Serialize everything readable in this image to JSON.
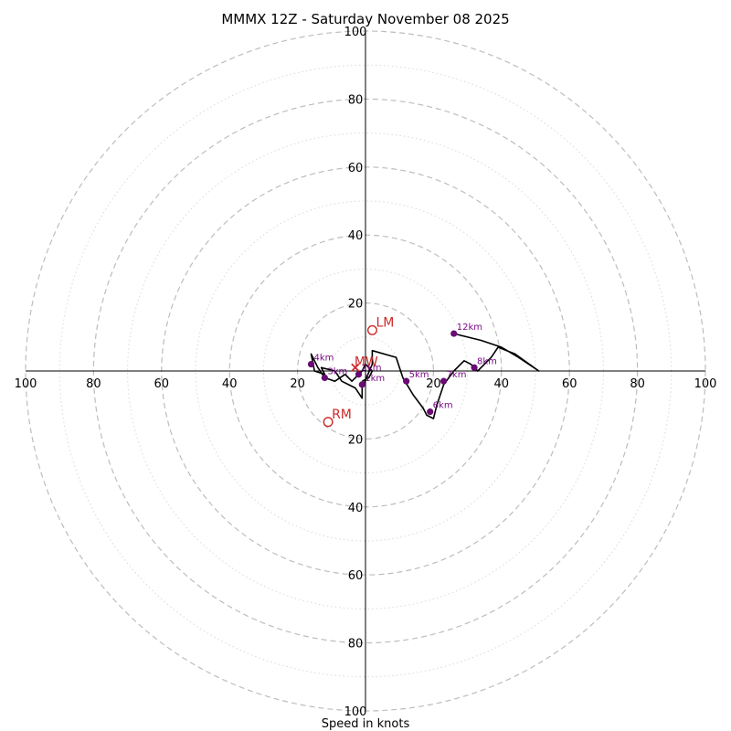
{
  "chart_data": {
    "type": "hodograph",
    "title": "MMMX 12Z - Saturday November 08 2025",
    "xlabel": "Speed in knots",
    "max_speed": 100,
    "ring_major_step": 20,
    "ring_minor_step": 10,
    "tick_values": [
      20,
      40,
      60,
      80,
      100
    ],
    "hodograph_path": [
      [
        -1,
        -3
      ],
      [
        1,
        -2
      ],
      [
        2,
        0
      ],
      [
        0,
        2
      ],
      [
        -1,
        0
      ],
      [
        -2,
        -1
      ],
      [
        -4,
        -3
      ],
      [
        -6,
        -1
      ],
      [
        -9,
        -3
      ],
      [
        -12,
        -2
      ],
      [
        -14,
        1
      ],
      [
        -16,
        5
      ],
      [
        -15,
        0
      ],
      [
        -12,
        -1
      ],
      [
        -13,
        1
      ],
      [
        -9,
        0
      ],
      [
        -7,
        -3
      ],
      [
        -5,
        -4
      ],
      [
        -3,
        -5
      ],
      [
        -1,
        -8
      ],
      [
        -1,
        -5
      ],
      [
        2,
        2
      ],
      [
        2,
        6
      ],
      [
        9,
        4
      ],
      [
        11,
        -2
      ],
      [
        14,
        -7
      ],
      [
        17,
        -11
      ],
      [
        18,
        -13
      ],
      [
        20,
        -14
      ],
      [
        21,
        -10
      ],
      [
        23,
        -4
      ],
      [
        26,
        0
      ],
      [
        29,
        3
      ],
      [
        31,
        2
      ],
      [
        33,
        0
      ],
      [
        37,
        4
      ],
      [
        39,
        7
      ],
      [
        44,
        5
      ],
      [
        51,
        0
      ],
      [
        45,
        4
      ],
      [
        40,
        7
      ],
      [
        34,
        9
      ],
      [
        26,
        11
      ]
    ],
    "height_markers": [
      {
        "label": "1km",
        "u": -1,
        "v": -4
      },
      {
        "label": "2km",
        "u": -2,
        "v": -1
      },
      {
        "label": "3km",
        "u": -12,
        "v": -2
      },
      {
        "label": "4km",
        "u": -16,
        "v": 2
      },
      {
        "label": "5km",
        "u": 12,
        "v": -3
      },
      {
        "label": "6km",
        "u": 19,
        "v": -12
      },
      {
        "label": "7km",
        "u": 23,
        "v": -3
      },
      {
        "label": "8km",
        "u": 32,
        "v": 1
      },
      {
        "label": "12km",
        "u": 26,
        "v": 11
      }
    ],
    "storm_motion": [
      {
        "label": "LM",
        "u": 2,
        "v": 12
      },
      {
        "label": "RM",
        "u": -11,
        "v": -15
      }
    ],
    "mean_wind": {
      "label": "MW",
      "u": -3,
      "v": 1
    }
  }
}
